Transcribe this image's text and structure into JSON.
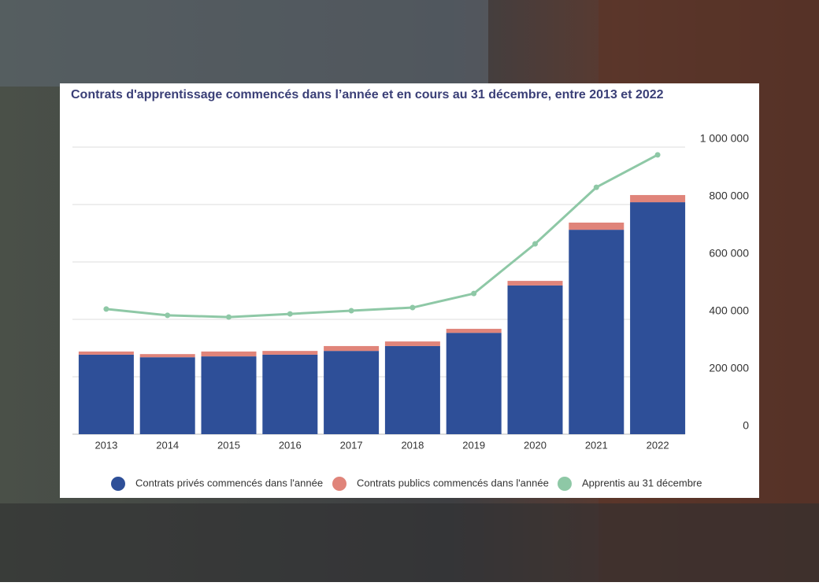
{
  "chart_data": {
    "type": "bar-line",
    "title": "Contrats d'apprentissage commencés dans l’année et en cours au 31 décembre, entre 2013 et 2022",
    "categories": [
      "2013",
      "2014",
      "2015",
      "2016",
      "2017",
      "2018",
      "2019",
      "2020",
      "2021",
      "2022"
    ],
    "series": [
      {
        "name": "Contrats privés commencés dans l'année",
        "color": "#2e4f98",
        "kind": "bar",
        "values": [
          277000,
          268000,
          271000,
          277000,
          290000,
          307000,
          353000,
          518000,
          712000,
          808000
        ]
      },
      {
        "name": "Contrats publics commencés dans l'année",
        "color": "#e0847a",
        "kind": "bar",
        "values": [
          11000,
          11000,
          17000,
          13000,
          17000,
          16000,
          14000,
          16000,
          25000,
          25000
        ]
      },
      {
        "name": "Apprentis au 31 décembre",
        "color": "#8ec8a6",
        "kind": "line",
        "values": [
          436000,
          414000,
          408000,
          419000,
          430000,
          441000,
          490000,
          663000,
          860000,
          973000
        ]
      }
    ],
    "ylim": [
      0,
      1000000
    ],
    "yticks": [
      0,
      {
        "value": 200000,
        "label": "200 000"
      },
      {
        "value": 400000,
        "label": "400 000"
      },
      {
        "value": 600000,
        "label": "600 000"
      },
      {
        "value": 800000,
        "label": "800 000"
      },
      {
        "value": 1000000,
        "label": "1 000 000"
      }
    ],
    "grid": true
  }
}
